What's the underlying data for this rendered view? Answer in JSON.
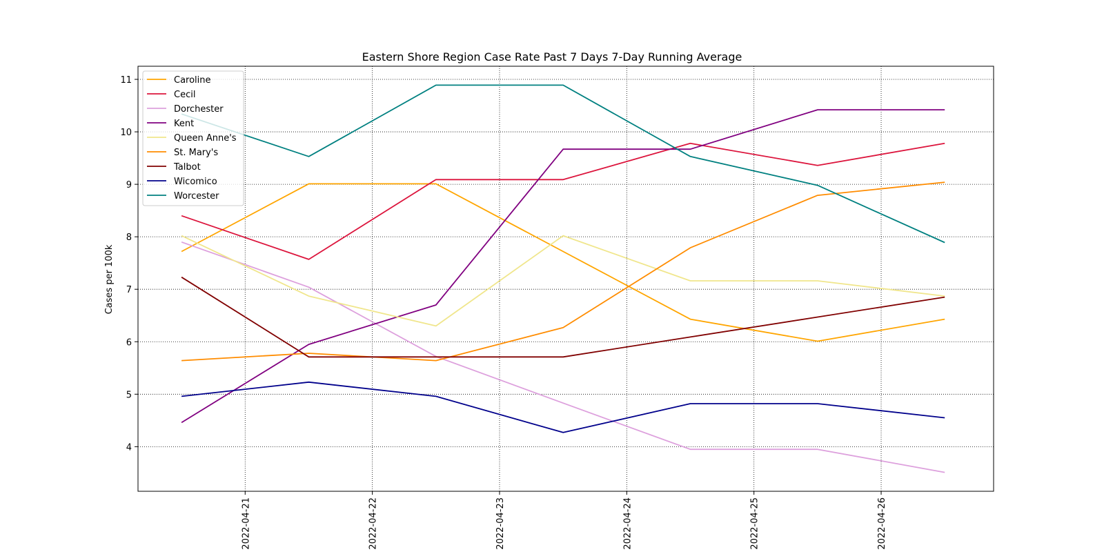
{
  "chart_data": {
    "type": "line",
    "title": "Eastern Shore Region Case Rate  Past 7 Days 7-Day Running Average",
    "xlabel": "",
    "ylabel": "Cases per 100k",
    "x": [
      "2022-04-20T12:00",
      "2022-04-21T12:00",
      "2022-04-22T12:00",
      "2022-04-23T12:00",
      "2022-04-24T12:00",
      "2022-04-25T12:00",
      "2022-04-26T12:00"
    ],
    "x_ticks": [
      "2022-04-21",
      "2022-04-22",
      "2022-04-23",
      "2022-04-24",
      "2022-04-25",
      "2022-04-26"
    ],
    "xlim": [
      "2022-04-20T03:47",
      "2022-04-26T21:13"
    ],
    "y_ticks": [
      4,
      5,
      6,
      7,
      8,
      9,
      10,
      11
    ],
    "ylim": [
      3.15,
      11.25
    ],
    "grid": true,
    "grid_style": "dotted",
    "legend_position": "top-left",
    "series": [
      {
        "name": "Caroline",
        "color": "#ffa500",
        "values": [
          7.72,
          9.01,
          9.01,
          7.72,
          6.43,
          6.01,
          6.43
        ]
      },
      {
        "name": "Cecil",
        "color": "#dc143c",
        "values": [
          8.4,
          7.57,
          9.09,
          9.09,
          9.78,
          9.36,
          9.78
        ]
      },
      {
        "name": "Dorchester",
        "color": "#dda0dd",
        "values": [
          7.9,
          7.04,
          5.72,
          4.83,
          3.95,
          3.95,
          3.51
        ]
      },
      {
        "name": "Kent",
        "color": "#800080",
        "values": [
          4.46,
          5.95,
          6.7,
          9.67,
          9.67,
          10.42,
          10.42
        ]
      },
      {
        "name": "Queen Anne's",
        "color": "#f0e68c",
        "values": [
          8.02,
          6.87,
          6.3,
          8.02,
          7.16,
          7.16,
          6.87
        ]
      },
      {
        "name": "St. Mary's",
        "color": "#ff8c00",
        "values": [
          5.64,
          5.78,
          5.64,
          6.27,
          7.79,
          8.79,
          9.04
        ]
      },
      {
        "name": "Talbot",
        "color": "#800000",
        "values": [
          7.23,
          5.71,
          5.71,
          5.71,
          6.09,
          6.47,
          6.85
        ]
      },
      {
        "name": "Wicomico",
        "color": "#00008b",
        "values": [
          4.96,
          5.23,
          4.96,
          4.27,
          4.82,
          4.82,
          4.55
        ]
      },
      {
        "name": "Worcester",
        "color": "#008080",
        "values": [
          10.34,
          9.53,
          10.89,
          10.89,
          9.53,
          8.98,
          7.89
        ]
      }
    ]
  }
}
